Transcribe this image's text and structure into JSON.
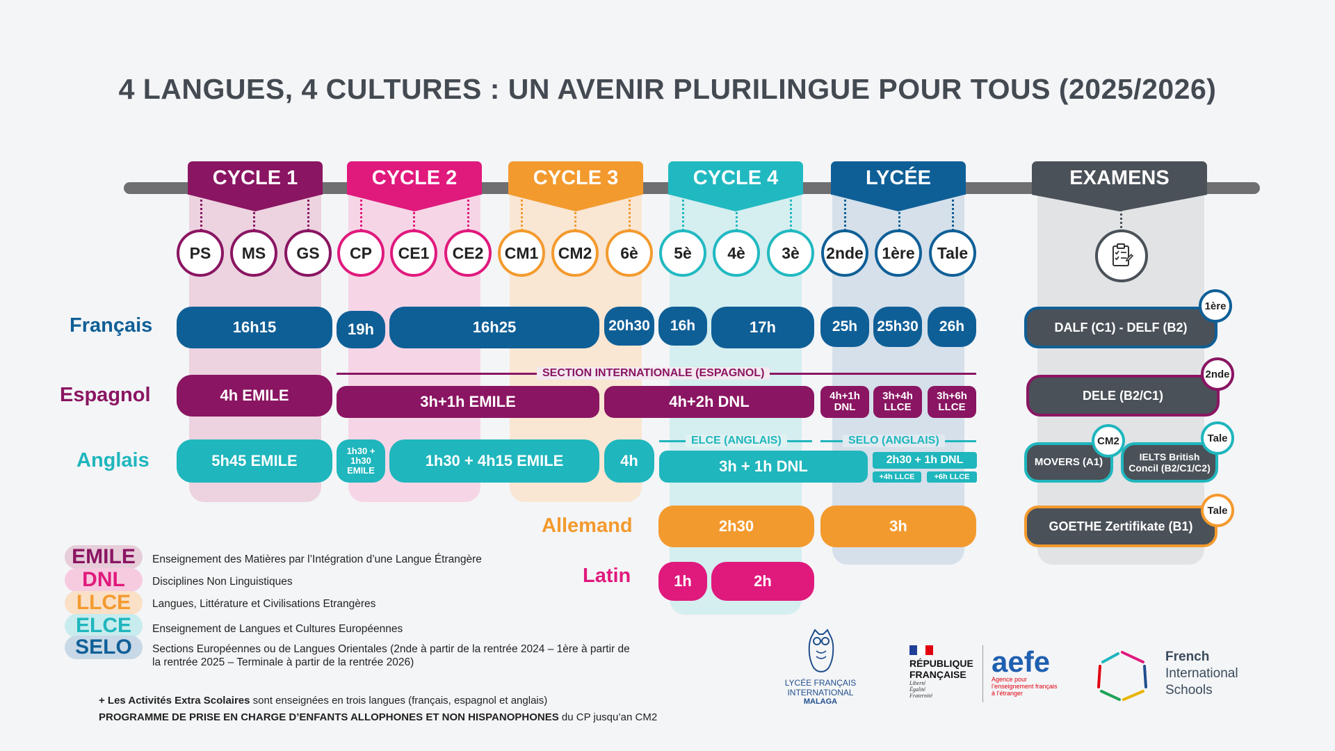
{
  "title": "4 LANGUES, 4 CULTURES : UN AVENIR PLURILINGUE POUR TOUS (2025/2026)",
  "colors": {
    "cycle1": "#8a1562",
    "cycle2": "#e0197d",
    "cycle3": "#f39a2e",
    "cycle4": "#21b9c1",
    "lycee": "#0f5f97",
    "examens": "#4a5158",
    "francais": "#0f5f97",
    "espagnol": "#8a1562",
    "anglais": "#1fb6bd",
    "allemand": "#f39a2e",
    "latin": "#e0197d"
  },
  "cycles": [
    {
      "label": "CYCLE 1",
      "levels": [
        "PS",
        "MS",
        "GS"
      ]
    },
    {
      "label": "CYCLE 2",
      "levels": [
        "CP",
        "CE1",
        "CE2"
      ]
    },
    {
      "label": "CYCLE 3",
      "levels": [
        "CM1",
        "CM2",
        "6è"
      ]
    },
    {
      "label": "CYCLE 4",
      "levels": [
        "5è",
        "4è",
        "3è"
      ]
    },
    {
      "label": "LYCÉE",
      "levels": [
        "2nde",
        "1ère",
        "Tale"
      ]
    }
  ],
  "examens": {
    "label": "EXAMENS",
    "icon": "clipboard-checklist-icon"
  },
  "languages": {
    "francais": "Français",
    "espagnol": "Espagnol",
    "anglais": "Anglais",
    "allemand": "Allemand",
    "latin": "Latin"
  },
  "francais": [
    "16h15",
    "19h",
    "16h25",
    "20h30",
    "16h",
    "17h",
    "25h",
    "25h30",
    "26h"
  ],
  "espagnol": {
    "section_label": "SECTION INTERNATIONALE (ESPAGNOL)",
    "cells": [
      "4h EMILE",
      "3h+1h EMILE",
      "4h+2h DNL"
    ],
    "lycee": [
      [
        "4h+1h",
        "DNL"
      ],
      [
        "3h+4h",
        "LLCE"
      ],
      [
        "3h+6h",
        "LLCE"
      ]
    ]
  },
  "anglais": {
    "elce_label": "ELCE (ANGLAIS)",
    "selo_label": "SELO (ANGLAIS)",
    "cells": [
      "5h45 EMILE",
      "1h30 + 4h15 EMILE",
      "4h",
      "3h + 1h DNL"
    ],
    "cp": [
      "1h30 +",
      "1h30",
      "EMILE"
    ],
    "lycee_main": "2h30 + 1h DNL",
    "lycee_sub": [
      "+4h LLCE",
      "+6h LLCE"
    ]
  },
  "allemand": [
    "2h30",
    "3h"
  ],
  "latin": [
    "1h",
    "2h"
  ],
  "exams": [
    {
      "label": "DALF (C1) - DELF (B2)",
      "tag": "1ère"
    },
    {
      "label": "DELE (B2/C1)",
      "tag": "2nde"
    },
    {
      "label": "MOVERS (A1)",
      "tag": "CM2"
    },
    {
      "label_l1": "IELTS British",
      "label_l2": "Concil (B2/C1/C2)",
      "tag": "Tale"
    },
    {
      "label": "GOETHE Zertifikate (B1)",
      "tag": "Tale"
    }
  ],
  "legend": [
    {
      "key": "EMILE",
      "text": "Enseignement des Matières par l’Intégration d’une Langue Étrangère"
    },
    {
      "key": "DNL",
      "text": "Disciplines Non Linguistiques"
    },
    {
      "key": "LLCE",
      "text": "Langues, Littérature et Civilisations Etrangères"
    },
    {
      "key": "ELCE",
      "text": "Enseignement de Langues et Cultures Européennes"
    },
    {
      "key": "SELO",
      "text_l1": "Sections Européennes ou de Langues Orientales (2nde à partir de la rentrée 2024 – 1ère à partir de",
      "text_l2": "la rentrée 2025 – Terminale à partir de la rentrée 2026)"
    }
  ],
  "footer": {
    "line1_bold": "+ Les Activités Extra Scolaires",
    "line1_rest": " sont enseignées en trois langues (français, espagnol et anglais)",
    "line2_bold": "PROGRAMME DE PRISE EN CHARGE D’ENFANTS ALLOPHONES ET NON HISPANOPHONES",
    "line2_rest": " du CP jusqu’an CM2"
  },
  "logos": {
    "lfim_l1": "LYCÉE FRANÇAIS",
    "lfim_l2": "INTERNATIONAL",
    "lfim_l3": "MALAGA",
    "rf_l1": "RÉPUBLIQUE",
    "rf_l2": "FRANÇAISE",
    "rf_l3": "Liberté",
    "rf_l4": "Égalité",
    "rf_l5": "Fraternité",
    "aefe": "aefe",
    "aefe_sub1": "Agence pour",
    "aefe_sub2": "l’enseignement français",
    "aefe_sub3": "à l’étranger",
    "fis_l1": "French",
    "fis_l2": "International",
    "fis_l3": "Schools"
  }
}
